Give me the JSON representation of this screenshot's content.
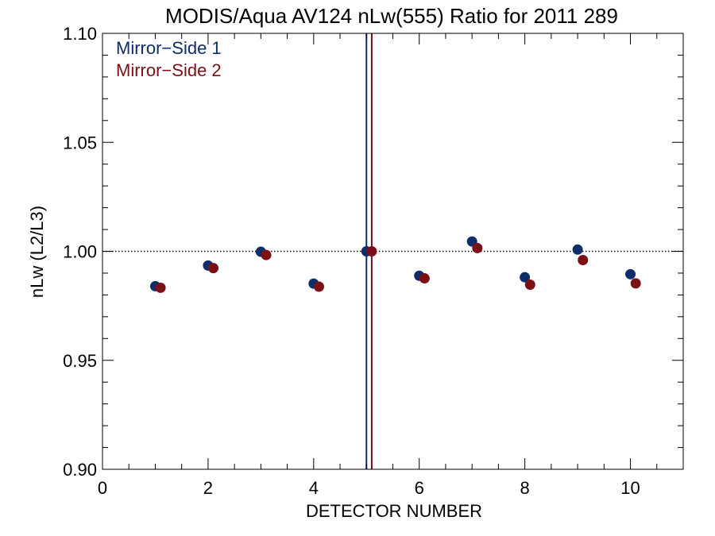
{
  "chart_data": {
    "type": "scatter",
    "title": "MODIS/Aqua AV124 nLw(555) Ratio for 2011 289",
    "xlabel": "DETECTOR NUMBER",
    "ylabel": "nLw (L2/L3)",
    "xlim": [
      0,
      11
    ],
    "ylim": [
      0.9,
      1.1
    ],
    "x_ticks": [
      0,
      2,
      4,
      6,
      8,
      10
    ],
    "x_tick_labels": [
      "0",
      "2",
      "4",
      "6",
      "8",
      "10"
    ],
    "y_ticks": [
      0.9,
      0.95,
      1.0,
      1.05,
      1.1
    ],
    "y_tick_labels": [
      "0.90",
      "0.95",
      "1.00",
      "1.05",
      "1.10"
    ],
    "x_minor_step": 0.5,
    "y_minor_step": 0.01,
    "reference_line_y": 1.0,
    "legend_position": "top-left",
    "series": [
      {
        "name": "Mirror−Side 1",
        "color": "#0d2d6b",
        "x": [
          1,
          2,
          3,
          4,
          5,
          6,
          7,
          8,
          9,
          10
        ],
        "y": [
          0.984,
          0.9935,
          0.9998,
          0.9852,
          1.0,
          0.9888,
          1.0045,
          0.9881,
          1.0008,
          0.9895
        ],
        "vertical_line_x": 5.0
      },
      {
        "name": "Mirror−Side 2",
        "color": "#7a1016",
        "x": [
          1.1,
          2.1,
          3.1,
          4.1,
          5.1,
          6.1,
          7.1,
          8.1,
          9.1,
          10.1
        ],
        "y": [
          0.9833,
          0.9923,
          0.9983,
          0.9838,
          1.0,
          0.9876,
          1.0015,
          0.9847,
          0.996,
          0.9853
        ],
        "vertical_line_x": 5.1
      }
    ]
  }
}
